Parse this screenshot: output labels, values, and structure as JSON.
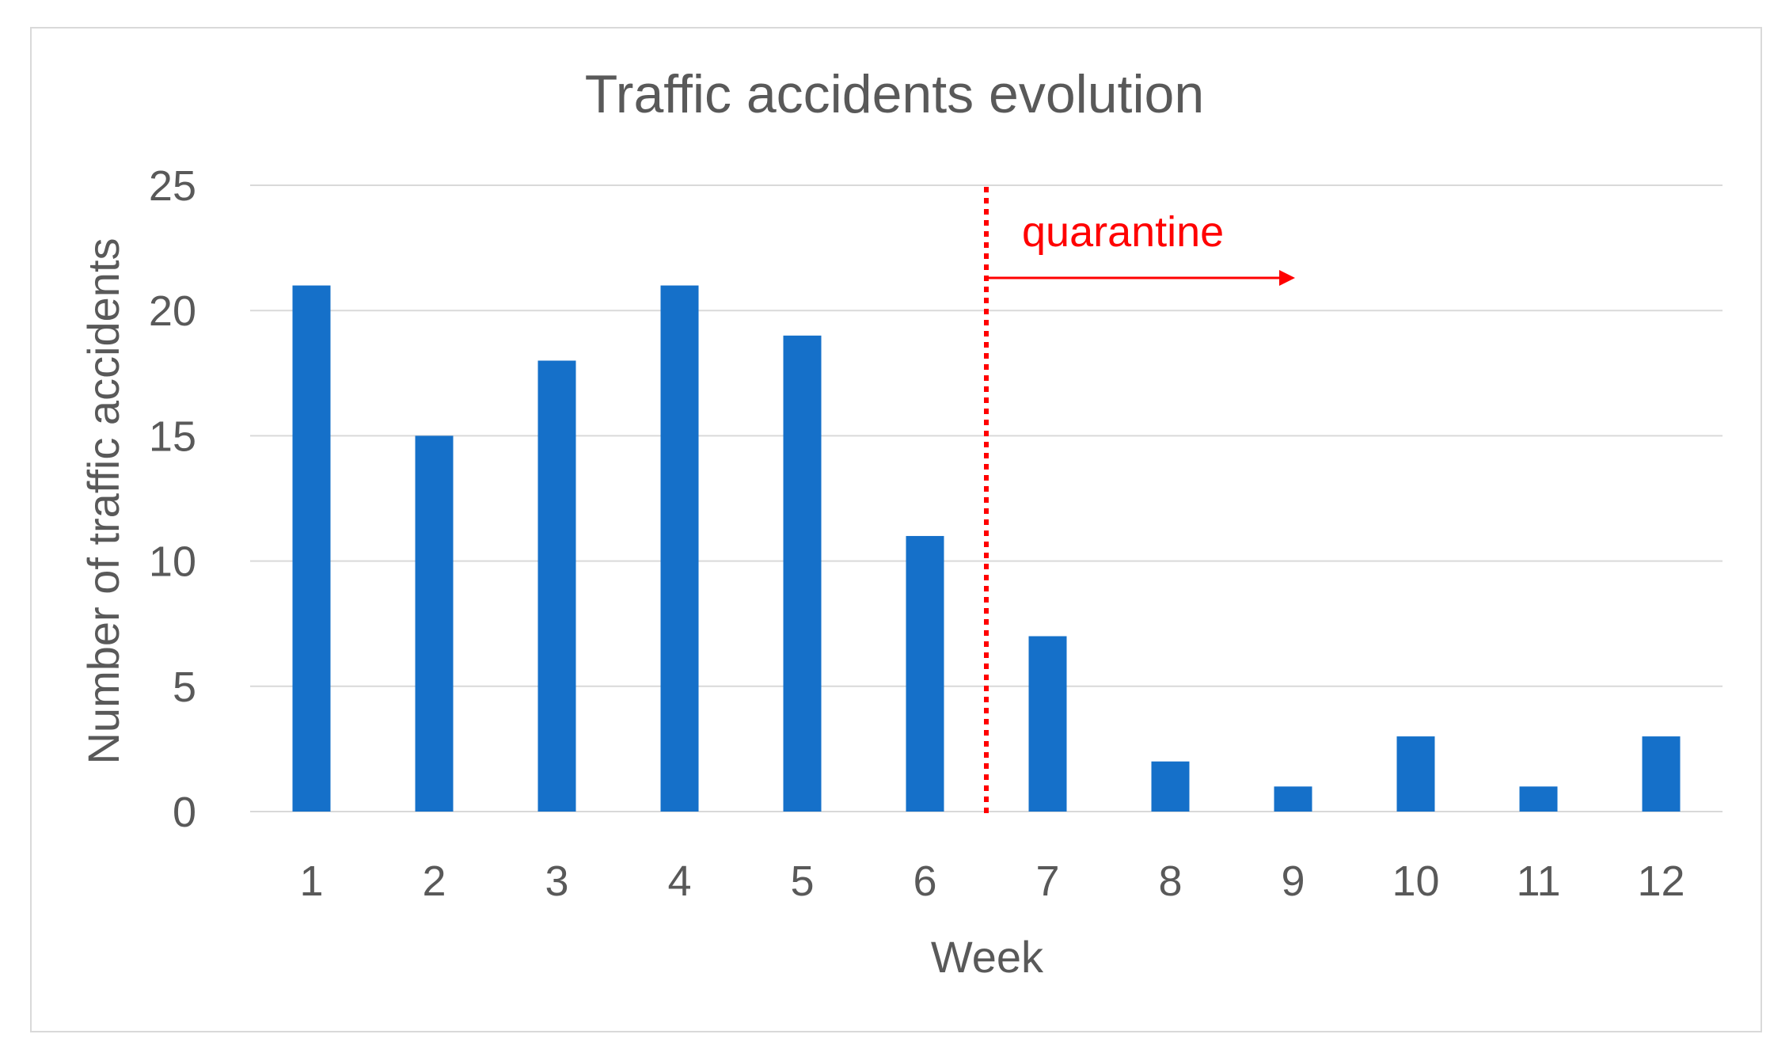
{
  "chart_data": {
    "type": "bar",
    "title": "Traffic accidents evolution",
    "xlabel": "Week",
    "ylabel": "Number of traffic accidents",
    "categories": [
      "1",
      "2",
      "3",
      "4",
      "5",
      "6",
      "7",
      "8",
      "9",
      "10",
      "11",
      "12"
    ],
    "values": [
      21,
      15,
      18,
      21,
      19,
      11,
      7,
      2,
      1,
      3,
      1,
      3
    ],
    "ylim": [
      0,
      25
    ],
    "yticks": [
      "0",
      "5",
      "10",
      "15",
      "20",
      "25"
    ],
    "grid": true,
    "legend": "none",
    "bar_color": "#1570c9",
    "annotation": {
      "label": "quarantine",
      "color": "#ff0000",
      "marker": "dotted vertical line between week 6 and week 7 with arrow pointing right"
    }
  }
}
